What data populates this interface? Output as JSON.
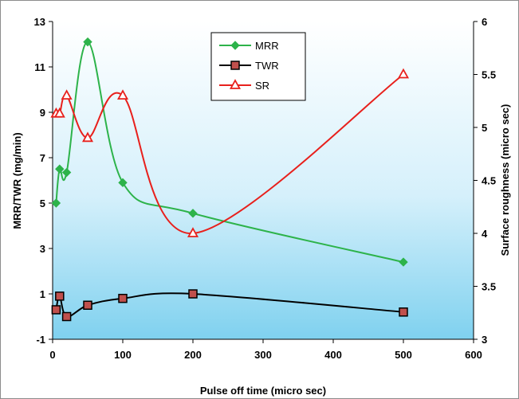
{
  "chart_data": {
    "type": "line",
    "title": "",
    "xlabel": "Pulse off time (micro sec)",
    "ylabel": "MRR/TWR (mg/min)",
    "y2label": "Surface roughness (micro sec)",
    "xlim": [
      0,
      600
    ],
    "ylim": [
      -1,
      13
    ],
    "y2lim": [
      3,
      6
    ],
    "xticks": [
      "0",
      "100",
      "200",
      "300",
      "400",
      "500",
      "600"
    ],
    "yticks": [
      "-1",
      "1",
      "3",
      "5",
      "7",
      "9",
      "11",
      "13"
    ],
    "y2ticks": [
      "3",
      "3.5",
      "4",
      "4.5",
      "5",
      "5.5",
      "6"
    ],
    "grid": false,
    "legend_position": "top-center",
    "series": [
      {
        "name": "MRR",
        "axis": "left",
        "color": "#2db34a",
        "marker": "diamond",
        "x": [
          5,
          10,
          20,
          50,
          100,
          200,
          500
        ],
        "y": [
          5.0,
          6.5,
          6.35,
          12.1,
          5.9,
          4.55,
          2.4
        ]
      },
      {
        "name": "TWR",
        "axis": "left",
        "color": "#000000",
        "marker": "square",
        "x": [
          5,
          10,
          20,
          50,
          100,
          200,
          500
        ],
        "y": [
          0.3,
          0.9,
          0.0,
          0.5,
          0.8,
          1.0,
          0.2
        ]
      },
      {
        "name": "SR",
        "axis": "right",
        "color": "#e8201c",
        "marker": "triangle",
        "x": [
          5,
          10,
          20,
          50,
          100,
          200,
          500
        ],
        "y": [
          5.13,
          5.13,
          5.3,
          4.9,
          5.3,
          4.0,
          5.5
        ]
      }
    ]
  }
}
